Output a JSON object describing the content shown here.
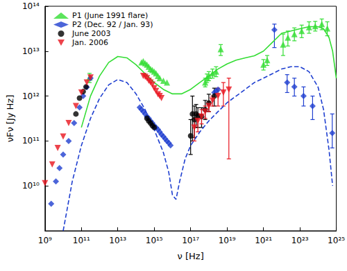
{
  "chart_data": {
    "type": "scatter",
    "x_label": "ν [Hz]",
    "y_label": "νFν [Jy Hz]",
    "log": true,
    "grid": false,
    "legend": "upper left",
    "xlim": [
      1000000000.0,
      1e+25
    ],
    "ylim": [
      1000000000.0,
      100000000000000.0
    ],
    "xticks": [
      {
        "value": 1000000000.0,
        "label": "10⁹"
      },
      {
        "value": 100000000000.0,
        "label": "10¹¹"
      },
      {
        "value": 10000000000000.0,
        "label": "10¹³"
      },
      {
        "value": 1000000000000000.0,
        "label": "10¹⁵"
      },
      {
        "value": 1e+17,
        "label": "10¹⁷"
      },
      {
        "value": 1e+19,
        "label": "10¹⁹"
      },
      {
        "value": 1e+21,
        "label": "10²¹"
      },
      {
        "value": 1e+23,
        "label": "10²³"
      },
      {
        "value": 1e+25,
        "label": "10²⁵"
      }
    ],
    "yticks": [
      {
        "value": 10000000000.0,
        "label": "10¹⁰"
      },
      {
        "value": 100000000000.0,
        "label": "10¹¹"
      },
      {
        "value": 1000000000000.0,
        "label": "10¹²"
      },
      {
        "value": 10000000000000.0,
        "label": "10¹³"
      },
      {
        "value": 100000000000000.0,
        "label": "10¹⁴"
      }
    ],
    "series": [
      {
        "name": "P1 (June 1991 flare)",
        "color": "#33dd33",
        "marker": "triangle",
        "line_style": "solid",
        "x": [
          280000000000.0,
          200000000000000.0,
          250000000000000.0,
          320000000000000.0,
          400000000000000.0,
          500000000000000.0,
          630000000000000.0,
          790000000000000.0,
          1000000000000000.0,
          1260000000000000.0,
          1600000000000000.0,
          2000000000000000.0,
          3200000000000000.0,
          5000000000000000.0,
          6.3e+17,
          7.9e+17,
          1e+18,
          1.6e+18,
          2.5e+18,
          4.5e+18,
          1e+21,
          1.6e+21,
          1.2e+22,
          2.2e+22,
          5e+22,
          1.26e+23,
          3.2e+23,
          7e+23,
          1.6e+24,
          3.2e+24
        ],
        "values": [
          2600000000000.0,
          5600000000000.0,
          6000000000000.0,
          5400000000000.0,
          5000000000000.0,
          4500000000000.0,
          4000000000000.0,
          3800000000000.0,
          3500000000000.0,
          3200000000000.0,
          2800000000000.0,
          2500000000000.0,
          2200000000000.0,
          2000000000000.0,
          2000000000000.0,
          2500000000000.0,
          2800000000000.0,
          3200000000000.0,
          3500000000000.0,
          11000000000000.0,
          5000000000000.0,
          6300000000000.0,
          14000000000000.0,
          20000000000000.0,
          24000000000000.0,
          28000000000000.0,
          34000000000000.0,
          36000000000000.0,
          40000000000000.0,
          32000000000000.0
        ],
        "y_low": [
          2000000000000.0,
          null,
          null,
          null,
          null,
          null,
          null,
          null,
          null,
          null,
          null,
          null,
          null,
          null,
          1600000000000.0,
          2000000000000.0,
          2200000000000.0,
          2500000000000.0,
          2700000000000.0,
          8000000000000.0,
          3800000000000.0,
          4800000000000.0,
          8000000000000.0,
          13000000000000.0,
          17000000000000.0,
          20000000000000.0,
          25000000000000.0,
          28000000000000.0,
          30000000000000.0,
          22000000000000.0
        ],
        "y_high": [
          3200000000000.0,
          null,
          null,
          null,
          null,
          null,
          null,
          null,
          null,
          null,
          null,
          null,
          null,
          null,
          2500000000000.0,
          3100000000000.0,
          3500000000000.0,
          4000000000000.0,
          4500000000000.0,
          14000000000000.0,
          6500000000000.0,
          8000000000000.0,
          24000000000000.0,
          28000000000000.0,
          33000000000000.0,
          38000000000000.0,
          45000000000000.0,
          46000000000000.0,
          52000000000000.0,
          45000000000000.0
        ],
        "model_x": [
          100000000000.0,
          316000000000.0,
          1000000000000.0,
          3160000000000.0,
          10000000000000.0,
          31600000000000.0,
          100000000000000.0,
          316000000000000.0,
          1000000000000000.0,
          3160000000000000.0,
          1e+16,
          3.16e+16,
          1e+17,
          3.16e+17,
          1e+18,
          3.16e+18,
          1e+19,
          3.16e+19,
          1e+20,
          3.16e+20,
          1e+21,
          3.16e+21,
          1e+22,
          3.16e+22,
          1e+23,
          3.16e+23,
          1e+24,
          2e+24,
          4e+24,
          6.3e+24,
          1e+25
        ],
        "model_values": [
          200000000000.0,
          1000000000000.0,
          2800000000000.0,
          5600000000000.0,
          7600000000000.0,
          7100000000000.0,
          5000000000000.0,
          3160000000000.0,
          2000000000000.0,
          1410000000000.0,
          1120000000000.0,
          1120000000000.0,
          1410000000000.0,
          2000000000000.0,
          2800000000000.0,
          4000000000000.0,
          5200000000000.0,
          6300000000000.0,
          7100000000000.0,
          7900000000000.0,
          10000000000000.0,
          15800000000000.0,
          25000000000000.0,
          28000000000000.0,
          31600000000000.0,
          35000000000000.0,
          35000000000000.0,
          31600000000000.0,
          20000000000000.0,
          10000000000000.0,
          2500000000000.0
        ]
      },
      {
        "name": "P2 (Dec. 92 / Jan. 93)",
        "color": "#1f3fd0",
        "marker": "diamond",
        "line_style": "dashed",
        "x": [
          2200000000.0,
          4000000000.0,
          6300000000.0,
          10000000000.0,
          20000000000.0,
          40000000000.0,
          79000000000.0,
          126000000000.0,
          200000000000.0,
          320000000000.0,
          160000000000000.0,
          200000000000000.0,
          250000000000000.0,
          320000000000000.0,
          400000000000000.0,
          500000000000000.0,
          630000000000000.0,
          790000000000000.0,
          1000000000000000.0,
          1260000000000000.0,
          1600000000000000.0,
          2000000000000000.0,
          2500000000000000.0,
          3200000000000000.0,
          4000000000000000.0,
          5000000000000000.0,
          6300000000000000.0,
          7900000000000000.0,
          2e+18,
          2.5e+18,
          3.2e+18,
          4e+21,
          2e+22,
          5e+22,
          1.6e+23,
          5e+23,
          6e+24
        ],
        "values": [
          4000000000.0,
          12600000000.0,
          25000000000.0,
          50000000000.0,
          100000000000.0,
          250000000000.0,
          560000000000.0,
          1000000000000.0,
          1580000000000.0,
          2500000000000.0,
          560000000000.0,
          500000000000.0,
          450000000000.0,
          400000000000.0,
          350000000000.0,
          320000000000.0,
          280000000000.0,
          250000000000.0,
          220000000000.0,
          200000000000.0,
          180000000000.0,
          160000000000.0,
          140000000000.0,
          126000000000.0,
          112000000000.0,
          100000000000.0,
          90000000000.0,
          80000000000.0,
          1200000000000.0,
          1300000000000.0,
          1400000000000.0,
          30000000000000.0,
          2000000000000.0,
          1600000000000.0,
          1000000000000.0,
          600000000000.0,
          150000000000.0
        ],
        "y_low": [
          null,
          null,
          null,
          null,
          null,
          null,
          null,
          null,
          null,
          null,
          null,
          null,
          null,
          null,
          null,
          null,
          null,
          null,
          null,
          null,
          null,
          null,
          null,
          null,
          null,
          null,
          null,
          null,
          null,
          null,
          null,
          12000000000000.0,
          1200000000000.0,
          1000000000000.0,
          600000000000.0,
          300000000000.0,
          70000000000.0
        ],
        "y_high": [
          null,
          null,
          null,
          null,
          null,
          null,
          null,
          null,
          null,
          null,
          null,
          null,
          null,
          null,
          null,
          null,
          null,
          null,
          null,
          null,
          null,
          null,
          null,
          null,
          null,
          null,
          null,
          null,
          null,
          null,
          null,
          40000000000000.0,
          3000000000000.0,
          2500000000000.0,
          1600000000000.0,
          1000000000000.0,
          400000000000.0
        ],
        "model_x": [
          10000000000.0,
          31600000000.0,
          100000000000.0,
          316000000000.0,
          1000000000000.0,
          3160000000000.0,
          10000000000000.0,
          31600000000000.0,
          100000000000000.0,
          316000000000000.0,
          1000000000000000.0,
          3160000000000000.0,
          6300000000000000.0,
          1e+16,
          1.58e+16,
          2.5e+16,
          5e+16,
          1e+17,
          3.16e+17,
          1e+18,
          3.16e+18,
          1e+19,
          3.16e+19,
          1e+20,
          3.16e+20,
          1e+21,
          3.16e+21,
          1e+22,
          3.16e+22,
          1e+23,
          3.16e+23,
          1e+24,
          2e+24,
          4e+24,
          6.3e+24
        ],
        "model_values": [
          1000000000.0,
          12600000000.0,
          79000000000.0,
          316000000000.0,
          890000000000.0,
          1780000000000.0,
          2340000000000.0,
          2000000000000.0,
          1120000000000.0,
          500000000000.0,
          178000000000.0,
          56000000000.0,
          20000000000.0,
          6300000000.0,
          5000000000.0,
          12600000000.0,
          40000000000.0,
          79000000000.0,
          158000000000.0,
          280000000000.0,
          450000000000.0,
          710000000000.0,
          1000000000000.0,
          1410000000000.0,
          2000000000000.0,
          2500000000000.0,
          3160000000000.0,
          4000000000000.0,
          4500000000000.0,
          4500000000000.0,
          3500000000000.0,
          1580000000000.0,
          500000000000.0,
          63000000000.0,
          10000000000.0
        ]
      },
      {
        "name": "June 2003",
        "color": "#000000",
        "marker": "circle",
        "x": [
          50000000000.0,
          79000000000.0,
          126000000000.0,
          180000000000.0,
          400000000000000.0,
          500000000000000.0,
          630000000000000.0,
          790000000000000.0,
          1000000000000000.0,
          1e+17,
          1.26e+17,
          1.6e+17,
          2e+17,
          2.5e+17,
          4e+17,
          6.3e+17,
          1e+18,
          2e+18
        ],
        "values": [
          400000000000.0,
          900000000000.0,
          1260000000000.0,
          1600000000000.0,
          320000000000.0,
          280000000000.0,
          250000000000.0,
          220000000000.0,
          200000000000.0,
          130000000000.0,
          400000000000.0,
          300000000000.0,
          400000000000.0,
          360000000000.0,
          350000000000.0,
          500000000000.0,
          700000000000.0,
          1000000000000.0
        ],
        "y_low": [
          null,
          null,
          null,
          null,
          null,
          null,
          null,
          null,
          null,
          50000000000.0,
          100000000000.0,
          120000000000.0,
          200000000000.0,
          200000000000.0,
          200000000000.0,
          300000000000.0,
          450000000000.0,
          600000000000.0
        ],
        "y_high": [
          null,
          null,
          null,
          null,
          null,
          null,
          null,
          null,
          null,
          300000000000.0,
          1000000000000.0,
          600000000000.0,
          650000000000.0,
          550000000000.0,
          550000000000.0,
          800000000000.0,
          1100000000000.0,
          1500000000000.0
        ]
      },
      {
        "name": "Jan. 2006",
        "color": "#e8141e",
        "marker": "triangle_down",
        "x": [
          1000000000.0,
          2500000000.0,
          5000000000.0,
          10000000000.0,
          20000000000.0,
          50000000000.0,
          100000000000.0,
          200000000000.0,
          320000000000.0,
          250000000000000.0,
          320000000000000.0,
          400000000000000.0,
          500000000000000.0,
          630000000000000.0,
          790000000000000.0,
          1000000000000000.0,
          1260000000000000.0,
          1600000000000000.0,
          2000000000000000.0,
          2500000000000000.0,
          1.6e+17,
          2.5e+17,
          4e+17,
          6.3e+17,
          1e+18,
          1.6e+18,
          3.2e+18,
          6.3e+18,
          1.26e+19
        ],
        "values": [
          11500000000.0,
          30000000000.0,
          70000000000.0,
          126000000000.0,
          250000000000.0,
          600000000000.0,
          1200000000000.0,
          2000000000000.0,
          2600000000000.0,
          2800000000000.0,
          2700000000000.0,
          2500000000000.0,
          2200000000000.0,
          2000000000000.0,
          1800000000000.0,
          1500000000000.0,
          1300000000000.0,
          1100000000000.0,
          1000000000000.0,
          900000000000.0,
          200000000000.0,
          280000000000.0,
          350000000000.0,
          450000000000.0,
          600000000000.0,
          800000000000.0,
          1000000000000.0,
          1200000000000.0,
          1400000000000.0
        ],
        "y_low": [
          null,
          null,
          null,
          null,
          null,
          null,
          null,
          null,
          null,
          null,
          null,
          null,
          null,
          null,
          null,
          null,
          null,
          null,
          null,
          null,
          100000000000.0,
          160000000000.0,
          240000000000.0,
          320000000000.0,
          450000000000.0,
          600000000000.0,
          600000000000.0,
          600000000000.0,
          40000000000.0
        ],
        "y_high": [
          null,
          null,
          null,
          null,
          null,
          null,
          null,
          null,
          null,
          null,
          null,
          null,
          null,
          null,
          null,
          null,
          null,
          null,
          null,
          null,
          320000000000.0,
          400000000000.0,
          500000000000.0,
          600000000000.0,
          750000000000.0,
          1000000000000.0,
          1500000000000.0,
          2000000000000.0,
          2500000000000.0
        ]
      }
    ]
  }
}
